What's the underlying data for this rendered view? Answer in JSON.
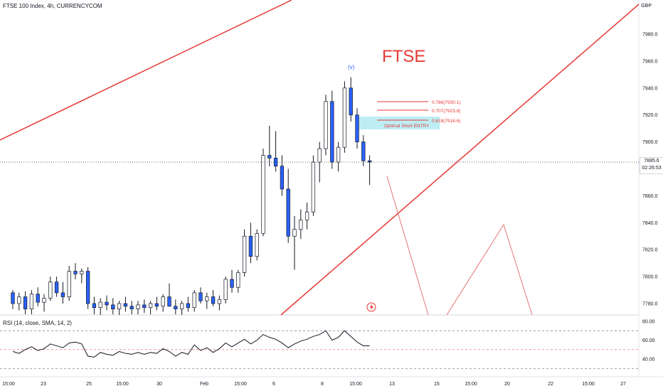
{
  "header": {
    "symbol_title": "FTSE 100 Index, 4h, CURRENCYCOM",
    "currency": "GBP"
  },
  "annotations": {
    "title": "FTSE",
    "wave_label": "(v)",
    "fib_786": "0.786(7930.1)",
    "fib_707": "0.707(7923.8)",
    "fib_618": "0.618(7916.6)",
    "entry_label": "Optimal Short ENTRY"
  },
  "price_tag": {
    "price": "7885.6",
    "countdown": "02:26:53"
  },
  "rsi": {
    "label": "RSI (14, close, SMA, 14, 2)"
  },
  "colors": {
    "up": "#ffffff",
    "down": "#2962ff",
    "wick": "#131722",
    "trendline": "#e53935",
    "rsi_line": "#131722",
    "entry_zone": "#b2ebf2"
  },
  "chart_data": {
    "type": "candlestick",
    "timeframe": "4h",
    "y_unit": "GBP",
    "ylim": [
      7770,
      7990
    ],
    "y_ticks": [
      7780,
      7800,
      7820,
      7840,
      7860,
      7880,
      7900,
      7920,
      7940,
      7960,
      7980
    ],
    "x_tick_labels": [
      "15:00",
      "23",
      "25",
      "15:00",
      "30",
      "Feb",
      "15:00",
      "6",
      "8",
      "15:00",
      "13",
      "15",
      "15:00",
      "20",
      "22",
      "15:00",
      "27"
    ],
    "candles": [
      [
        7788,
        7790,
        7776,
        7780
      ],
      [
        7780,
        7788,
        7775,
        7785
      ],
      [
        7785,
        7789,
        7772,
        7776
      ],
      [
        7776,
        7790,
        7772,
        7787
      ],
      [
        7787,
        7792,
        7778,
        7781
      ],
      [
        7781,
        7787,
        7774,
        7784
      ],
      [
        7784,
        7800,
        7782,
        7796
      ],
      [
        7796,
        7800,
        7785,
        7788
      ],
      [
        7788,
        7796,
        7780,
        7785
      ],
      [
        7785,
        7808,
        7782,
        7804
      ],
      [
        7804,
        7810,
        7798,
        7802
      ],
      [
        7802,
        7806,
        7795,
        7804
      ],
      [
        7804,
        7807,
        7776,
        7780
      ],
      [
        7780,
        7785,
        7772,
        7777
      ],
      [
        7777,
        7784,
        7770,
        7781
      ],
      [
        7781,
        7786,
        7775,
        7779
      ],
      [
        7779,
        7784,
        7772,
        7776
      ],
      [
        7776,
        7782,
        7770,
        7780
      ],
      [
        7780,
        7785,
        7774,
        7778
      ],
      [
        7778,
        7782,
        7772,
        7776
      ],
      [
        7776,
        7782,
        7772,
        7779
      ],
      [
        7779,
        7783,
        7773,
        7777
      ],
      [
        7777,
        7782,
        7772,
        7780
      ],
      [
        7780,
        7785,
        7775,
        7778
      ],
      [
        7778,
        7787,
        7774,
        7785
      ],
      [
        7785,
        7795,
        7780,
        7778
      ],
      [
        7778,
        7783,
        7772,
        7776
      ],
      [
        7776,
        7782,
        7770,
        7780
      ],
      [
        7780,
        7785,
        7774,
        7777
      ],
      [
        7777,
        7790,
        7774,
        7788
      ],
      [
        7788,
        7792,
        7780,
        7782
      ],
      [
        7782,
        7788,
        7776,
        7785
      ],
      [
        7785,
        7790,
        7778,
        7780
      ],
      [
        7780,
        7786,
        7775,
        7783
      ],
      [
        7783,
        7800,
        7780,
        7798
      ],
      [
        7798,
        7805,
        7788,
        7792
      ],
      [
        7792,
        7805,
        7788,
        7803
      ],
      [
        7803,
        7835,
        7800,
        7830
      ],
      [
        7830,
        7840,
        7810,
        7815
      ],
      [
        7815,
        7835,
        7812,
        7832
      ],
      [
        7832,
        7895,
        7830,
        7890
      ],
      [
        7890,
        7912,
        7882,
        7888
      ],
      [
        7888,
        7908,
        7878,
        7882
      ],
      [
        7882,
        7890,
        7860,
        7865
      ],
      [
        7865,
        7880,
        7825,
        7830
      ],
      [
        7830,
        7845,
        7805,
        7835
      ],
      [
        7835,
        7850,
        7828,
        7842
      ],
      [
        7842,
        7855,
        7835,
        7848
      ],
      [
        7848,
        7890,
        7845,
        7885
      ],
      [
        7885,
        7900,
        7870,
        7895
      ],
      [
        7895,
        7935,
        7890,
        7930
      ],
      [
        7930,
        7938,
        7880,
        7885
      ],
      [
        7885,
        7900,
        7878,
        7896
      ],
      [
        7896,
        7945,
        7892,
        7940
      ],
      [
        7940,
        7948,
        7915,
        7920
      ],
      [
        7920,
        7925,
        7895,
        7900
      ],
      [
        7900,
        7905,
        7882,
        7886
      ],
      [
        7886,
        7890,
        7868,
        7885
      ]
    ],
    "rsi": {
      "ylim": [
        20,
        90
      ],
      "levels": [
        70,
        50,
        30
      ],
      "y_ticks": [
        40,
        60,
        80
      ],
      "values": [
        48,
        46,
        50,
        53,
        49,
        51,
        56,
        54,
        52,
        57,
        58,
        56,
        43,
        42,
        47,
        45,
        44,
        48,
        46,
        45,
        47,
        45,
        47,
        46,
        51,
        48,
        43,
        47,
        45,
        55,
        49,
        52,
        47,
        51,
        57,
        53,
        57,
        61,
        56,
        60,
        66,
        63,
        61,
        57,
        52,
        56,
        59,
        61,
        64,
        66,
        70,
        60,
        63,
        70,
        64,
        58,
        54,
        54
      ]
    }
  }
}
